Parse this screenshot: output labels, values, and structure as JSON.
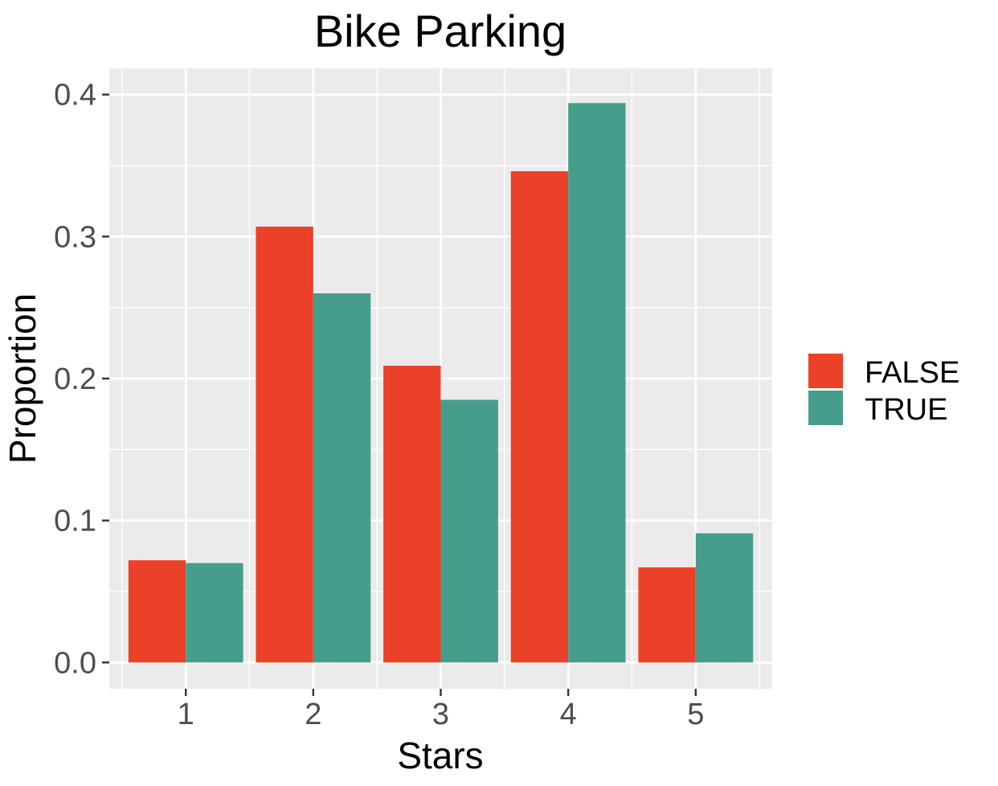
{
  "chart_data": {
    "type": "bar",
    "title": "Bike Parking",
    "xlabel": "Stars",
    "ylabel": "Proportion",
    "categories": [
      "1",
      "2",
      "3",
      "4",
      "5"
    ],
    "series": [
      {
        "name": "FALSE",
        "color": "#EA4128",
        "values": [
          0.072,
          0.307,
          0.209,
          0.346,
          0.067
        ]
      },
      {
        "name": "TRUE",
        "color": "#469D8B",
        "values": [
          0.07,
          0.26,
          0.185,
          0.394,
          0.091
        ]
      }
    ],
    "ylim": [
      -0.0185,
      0.4185
    ],
    "yticks": [
      0.0,
      0.1,
      0.2,
      0.3,
      0.4
    ],
    "ytick_labels": [
      "0.0",
      "0.1",
      "0.2",
      "0.3",
      "0.4"
    ],
    "grid": true,
    "legend_position": "right",
    "panel_color": "#EBEBEB"
  }
}
